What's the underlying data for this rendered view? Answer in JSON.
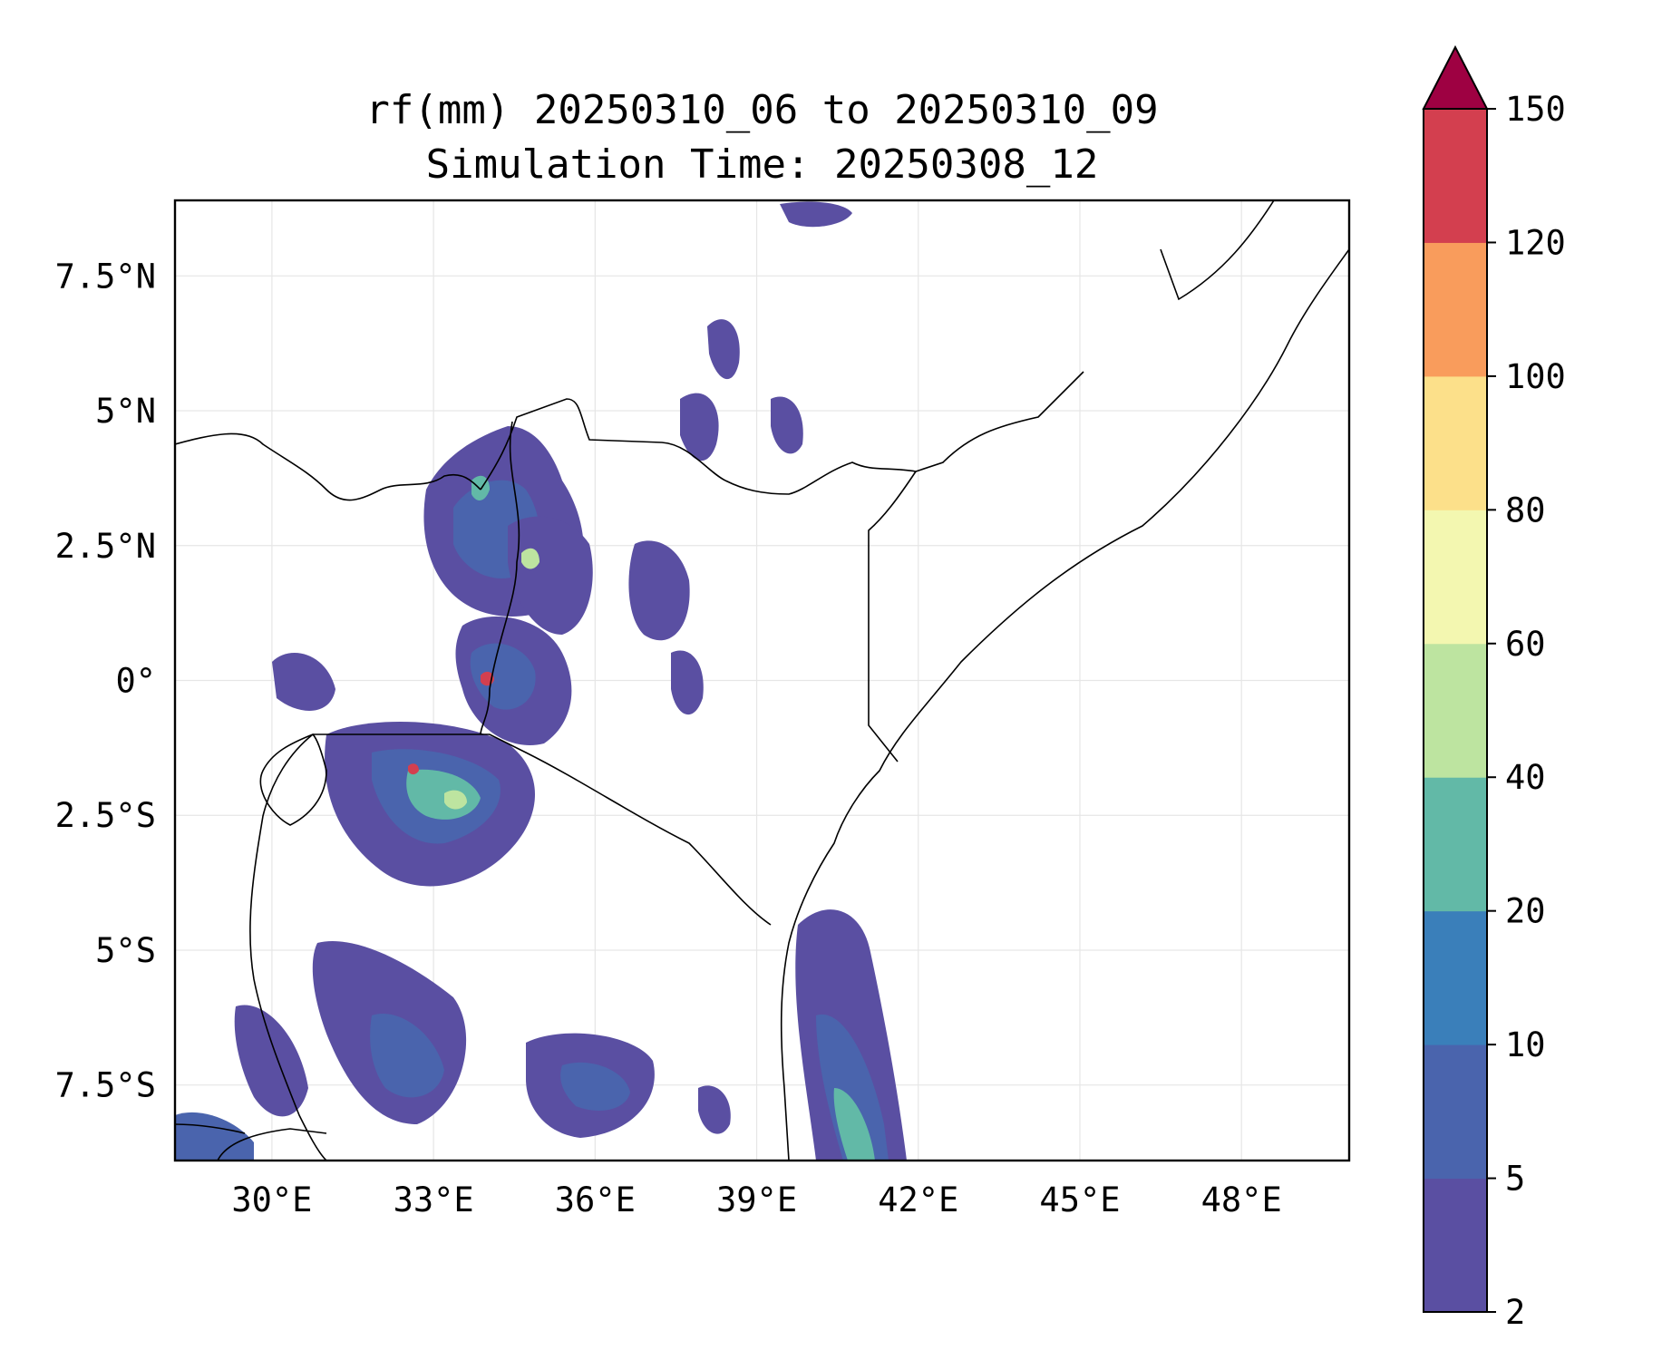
{
  "title": {
    "line1": "rf(mm) 20250310_06 to 20250310_09",
    "line2": "Simulation Time: 20250308_12"
  },
  "map": {
    "lon_range": [
      28.2,
      50.0
    ],
    "lat_range": [
      -8.9,
      8.9
    ],
    "lon_ticks": [
      {
        "value": 30,
        "label": "30°E"
      },
      {
        "value": 33,
        "label": "33°E"
      },
      {
        "value": 36,
        "label": "36°E"
      },
      {
        "value": 39,
        "label": "39°E"
      },
      {
        "value": 42,
        "label": "42°E"
      },
      {
        "value": 45,
        "label": "45°E"
      },
      {
        "value": 48,
        "label": "48°E"
      }
    ],
    "lat_ticks": [
      {
        "value": 7.5,
        "label": "7.5°N"
      },
      {
        "value": 5,
        "label": "5°N"
      },
      {
        "value": 2.5,
        "label": "2.5°N"
      },
      {
        "value": 0,
        "label": "0°"
      },
      {
        "value": -2.5,
        "label": "2.5°S"
      },
      {
        "value": -5,
        "label": "5°S"
      },
      {
        "value": -7.5,
        "label": "7.5°S"
      }
    ],
    "grid": true
  },
  "colorbar": {
    "levels": [
      "2",
      "5",
      "10",
      "20",
      "40",
      "60",
      "80",
      "100",
      "120",
      "150"
    ],
    "colors": [
      "#5a4fa2",
      "#4a64ad",
      "#3a7fba",
      "#62b9a7",
      "#bde4a0",
      "#f3f7b0",
      "#fce08a",
      "#f99c5c",
      "#d33f4f"
    ],
    "extend_color": "#9e0142",
    "extend": "max"
  }
}
